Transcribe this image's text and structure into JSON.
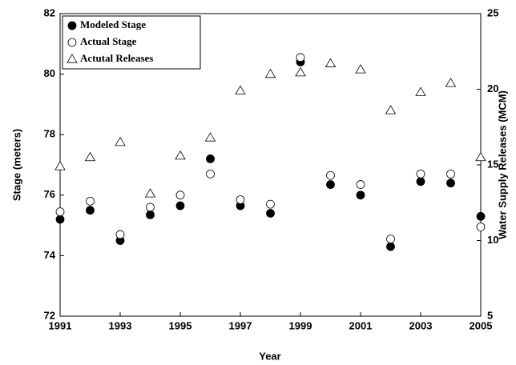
{
  "chart_data": {
    "type": "scatter",
    "x": [
      1991,
      1992,
      1993,
      1994,
      1995,
      1996,
      1997,
      1998,
      1999,
      2000,
      2001,
      2002,
      2003,
      2004,
      2005
    ],
    "xlabel": "Year",
    "ylabel": "Stage (meters)",
    "y2label": "Water Supply Releases (MCM)",
    "xlim": [
      1991,
      2005
    ],
    "xticks": [
      1991,
      1993,
      1995,
      1997,
      1999,
      2001,
      2003,
      2005
    ],
    "ylim": [
      72,
      82
    ],
    "yticks": [
      72,
      74,
      76,
      78,
      80,
      82
    ],
    "y2lim": [
      5,
      25
    ],
    "y2ticks": [
      5,
      10,
      15,
      20,
      25
    ],
    "legend": "upper left",
    "series": [
      {
        "name": "Modeled Stage",
        "color": "#000000",
        "marker": "circle",
        "filled": true,
        "values": [
          75.2,
          75.5,
          74.5,
          75.35,
          75.65,
          77.2,
          75.65,
          75.4,
          80.4,
          76.35,
          76.0,
          74.3,
          76.45,
          76.4,
          75.3
        ]
      },
      {
        "name": "Actual Stage",
        "color": "#000000",
        "marker": "circle",
        "filled": false,
        "values": [
          75.45,
          75.8,
          74.7,
          75.6,
          76.0,
          76.7,
          75.85,
          75.7,
          80.55,
          76.65,
          76.35,
          74.55,
          76.7,
          76.7,
          74.95
        ]
      },
      {
        "name": "Actutal Releases",
        "color": "#000000",
        "marker": "triangle",
        "filled": false,
        "axis": "y2",
        "values": [
          14.9,
          15.5,
          16.5,
          13.1,
          15.6,
          16.8,
          19.9,
          21.0,
          21.1,
          21.7,
          21.3,
          18.6,
          19.8,
          20.4,
          15.5
        ]
      }
    ]
  }
}
